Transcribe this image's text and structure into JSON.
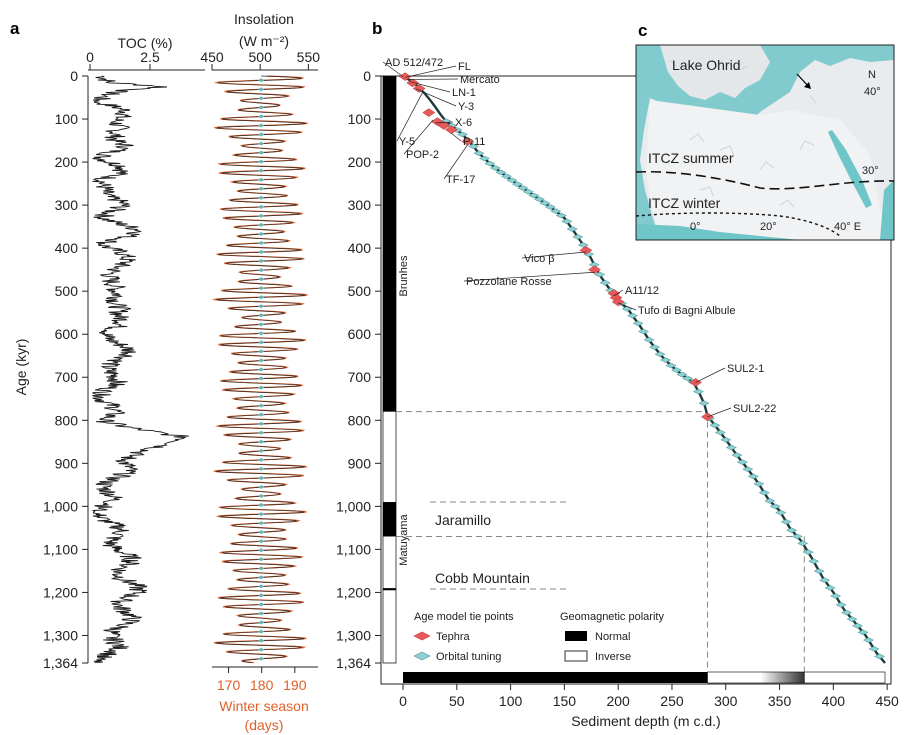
{
  "panels": {
    "a": "a",
    "b": "b",
    "c": "c"
  },
  "age_axis": {
    "label": "Age (kyr)",
    "ticks": [
      "0",
      "100",
      "200",
      "300",
      "400",
      "500",
      "600",
      "700",
      "800",
      "900",
      "1,000",
      "1,100",
      "1,200",
      "1,300",
      "1,364"
    ],
    "values": [
      0,
      100,
      200,
      300,
      400,
      500,
      600,
      700,
      800,
      900,
      1000,
      1100,
      1200,
      1300,
      1364
    ]
  },
  "panel_a": {
    "toc": {
      "label": "TOC (%)",
      "ticks": [
        "0",
        "2.5"
      ],
      "tick_values": [
        0,
        2.5
      ]
    },
    "insolation": {
      "label_line1": "Insolation",
      "label_line2": "(W m⁻²)",
      "ticks": [
        "450",
        "500",
        "550"
      ],
      "tick_values": [
        450,
        500,
        550
      ]
    },
    "winter": {
      "ticks": [
        "170",
        "180",
        "190"
      ],
      "tick_values": [
        170,
        180,
        190
      ],
      "label_line1": "Winter season",
      "label_line2": "(days)"
    }
  },
  "panel_b": {
    "polarity": {
      "brunhes": "Brunhes",
      "matuyama": "Matuyama",
      "jaramillo": "Jaramillo",
      "cobb": "Cobb Mountain"
    },
    "x_axis": {
      "label": "Sediment depth (m c.d.)",
      "ticks": [
        "0",
        "50",
        "100",
        "150",
        "200",
        "250",
        "300",
        "350",
        "400",
        "450"
      ],
      "values": [
        0,
        50,
        100,
        150,
        200,
        250,
        300,
        350,
        400,
        450
      ]
    },
    "tephra_labels": [
      {
        "text": "AD 512/472",
        "depth": 0,
        "age": 1.5
      },
      {
        "text": "FL",
        "depth": 2,
        "age": 3
      },
      {
        "text": "Mercato",
        "depth": 4,
        "age": 8
      },
      {
        "text": "LN-1",
        "depth": 6,
        "age": 13
      },
      {
        "text": "Y-3",
        "depth": 12,
        "age": 30
      },
      {
        "text": "Y-5",
        "depth": 18,
        "age": 39
      },
      {
        "text": "X-6",
        "depth": 30,
        "age": 109
      },
      {
        "text": "POP-2",
        "depth": 28,
        "age": 102
      },
      {
        "text": "P-11",
        "depth": 45,
        "age": 133
      },
      {
        "text": "TF-17",
        "depth": 60,
        "age": 160
      },
      {
        "text": "Vico β",
        "depth": 170,
        "age": 409
      },
      {
        "text": "Pozzolane Rosse",
        "depth": 178,
        "age": 456
      },
      {
        "text": "A11/12",
        "depth": 196,
        "age": 511
      },
      {
        "text": "Tufo di Bagni Albule",
        "depth": 200,
        "age": 527
      },
      {
        "text": "SUL2-1",
        "depth": 272,
        "age": 712
      },
      {
        "text": "SUL2-22",
        "depth": 283,
        "age": 792
      }
    ],
    "legend": {
      "tie_title": "Age model tie points",
      "tephra": "Tephra",
      "orbital": "Orbital tuning",
      "polarity_title": "Geomagnetic polarity",
      "normal": "Normal",
      "inverse": "Inverse"
    }
  },
  "panel_c": {
    "lake": "Lake Ohrid",
    "itcz_summer": "ITCZ summer",
    "itcz_winter": "ITCZ winter",
    "lat_labels": [
      "N",
      "40°",
      "30°"
    ],
    "lon_labels": [
      "0°",
      "20°",
      "40° E"
    ]
  },
  "chart_data": [
    {
      "type": "line",
      "title": "",
      "xlabel": "TOC (%)",
      "ylabel": "Age (kyr)",
      "xlim": [
        0,
        4.6
      ],
      "ylim": [
        1364,
        0
      ],
      "series": [
        {
          "values_x": [
            0.5,
            0.4,
            2.9,
            1.2,
            0.6,
            1.2,
            1.0,
            1.6,
            0.7,
            1.3,
            0.8,
            1.3,
            0.5,
            1.0,
            0.6,
            1.1,
            0.9,
            1.8,
            0.8,
            1.5,
            1.0,
            1.2,
            0.7,
            1.6,
            1.0,
            1.0,
            1.4,
            0.8,
            0.7,
            3.7,
            1.4,
            0.5,
            1.3,
            1.7,
            1.2,
            0.4
          ],
          "values_age": [
            0,
            15,
            25,
            35,
            60,
            80,
            100,
            120,
            150,
            165,
            190,
            210,
            240,
            260,
            280,
            300,
            330,
            360,
            390,
            410,
            440,
            470,
            500,
            540,
            560,
            600,
            650,
            700,
            800,
            840,
            900,
            1000,
            1100,
            1200,
            1300,
            1364
          ]
        }
      ]
    },
    {
      "type": "line",
      "xlabel": "Insolation (W m⁻²)",
      "ylabel": "Age (kyr)",
      "xlim": [
        450,
        560
      ],
      "ylim": [
        1364,
        0
      ],
      "series": [
        {
          "name": "Insolation",
          "mean": 501,
          "amplitude_range": [
            10,
            50
          ],
          "period_kyr": 21
        },
        {
          "name": "Winter season (days)",
          "xlim": [
            165,
            197
          ],
          "mean": 181
        }
      ]
    },
    {
      "type": "scatter",
      "xlabel": "Sediment depth (m c.d.)",
      "ylabel": "Age (kyr)",
      "xlim": [
        -3,
        452
      ],
      "ylim": [
        1364,
        0
      ],
      "age_depth": {
        "depth": [
          0,
          5,
          10,
          15,
          20,
          25,
          30,
          35,
          40,
          45,
          50,
          55,
          60,
          65,
          70,
          75,
          80,
          90,
          100,
          110,
          120,
          130,
          140,
          150,
          160,
          170,
          175,
          180,
          185,
          190,
          195,
          200,
          205,
          210,
          220,
          230,
          240,
          250,
          260,
          270,
          275,
          280,
          283,
          290,
          300,
          310,
          320,
          330,
          340,
          350,
          360,
          370,
          380,
          390,
          400,
          410,
          420,
          430,
          440,
          448
        ],
        "age": [
          0,
          8,
          15,
          28,
          40,
          55,
          72,
          90,
          105,
          115,
          125,
          135,
          148,
          162,
          178,
          190,
          202,
          222,
          240,
          258,
          275,
          292,
          310,
          330,
          365,
          402,
          425,
          450,
          470,
          488,
          505,
          520,
          533,
          545,
          580,
          618,
          650,
          675,
          695,
          712,
          735,
          762,
          790,
          812,
          845,
          880,
          912,
          945,
          985,
          1010,
          1052,
          1080,
          1120,
          1165,
          1200,
          1240,
          1270,
          1300,
          1340,
          1364
        ]
      },
      "tephra_points": [
        {
          "depth": 2,
          "age": 1.5
        },
        {
          "depth": 9,
          "age": 16
        },
        {
          "depth": 15,
          "age": 29
        },
        {
          "depth": 24,
          "age": 85
        },
        {
          "depth": 32,
          "age": 106
        },
        {
          "depth": 38,
          "age": 115
        },
        {
          "depth": 45,
          "age": 125
        },
        {
          "depth": 60,
          "age": 152
        },
        {
          "depth": 170,
          "age": 405
        },
        {
          "depth": 178,
          "age": 450
        },
        {
          "depth": 196,
          "age": 505
        },
        {
          "depth": 198,
          "age": 515
        },
        {
          "depth": 200,
          "age": 525
        },
        {
          "depth": 272,
          "age": 712
        },
        {
          "depth": 283,
          "age": 792
        }
      ],
      "orbital_points_count": 80,
      "polarity": [
        {
          "name": "Brunhes",
          "from": 0,
          "to": 780,
          "state": "Normal"
        },
        {
          "name": "Matuyama",
          "from": 780,
          "to": 1364,
          "state": "Inverse"
        },
        {
          "name": "Jaramillo",
          "from": 990,
          "to": 1070,
          "state": "Normal"
        },
        {
          "name": "Cobb Mountain",
          "from": 1190,
          "to": 1195,
          "state": "Normal"
        }
      ]
    }
  ]
}
